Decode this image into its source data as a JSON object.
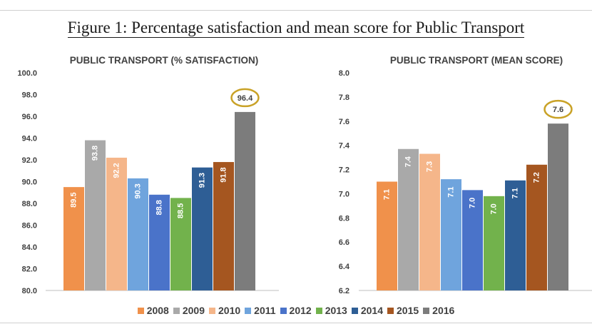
{
  "figure_title": "Figure 1: Percentage satisfaction and mean score for Public Transport",
  "legend": [
    "2008",
    "2009",
    "2010",
    "2011",
    "2012",
    "2013",
    "2014",
    "2015",
    "2016"
  ],
  "colors": [
    "#f0914b",
    "#a9a9a9",
    "#f5b68a",
    "#6fa4dd",
    "#4a73c9",
    "#72b24c",
    "#2e5e95",
    "#a55620",
    "#7c7c7c"
  ],
  "chart_data": [
    {
      "type": "bar",
      "title": "PUBLIC TRANSPORT (% SATISFACTION)",
      "categories": [
        "2008",
        "2009",
        "2010",
        "2011",
        "2012",
        "2013",
        "2014",
        "2015",
        "2016"
      ],
      "values": [
        89.5,
        93.8,
        92.2,
        90.3,
        88.8,
        88.5,
        91.3,
        91.8,
        96.4
      ],
      "data_labels": [
        "89.5",
        "93.8",
        "92.2",
        "90.3",
        "88.8",
        "88.5",
        "91.3",
        "91.8",
        "96.4"
      ],
      "ylim": [
        80.0,
        100.0
      ],
      "yticks": [
        "80.0",
        "82.0",
        "84.0",
        "86.0",
        "88.0",
        "90.0",
        "92.0",
        "94.0",
        "96.0",
        "98.0",
        "100.0"
      ],
      "highlight_label": "96.4",
      "grid": false
    },
    {
      "type": "bar",
      "title": "PUBLIC TRANSPORT (MEAN SCORE)",
      "categories": [
        "2008",
        "2009",
        "2010",
        "2011",
        "2012",
        "2013",
        "2014",
        "2015",
        "2016"
      ],
      "values": [
        7.1,
        7.37,
        7.33,
        7.12,
        7.03,
        6.98,
        7.11,
        7.24,
        7.58
      ],
      "data_labels": [
        "7.1",
        "7.4",
        "7.3",
        "7.1",
        "7.0",
        "7.0",
        "7.1",
        "7.2",
        "7.6"
      ],
      "ylim": [
        6.2,
        8.0
      ],
      "yticks": [
        "6.2",
        "6.4",
        "6.6",
        "6.8",
        "7.0",
        "7.2",
        "7.4",
        "7.6",
        "7.8",
        "8.0"
      ],
      "highlight_label": "7.6",
      "grid": false
    }
  ]
}
